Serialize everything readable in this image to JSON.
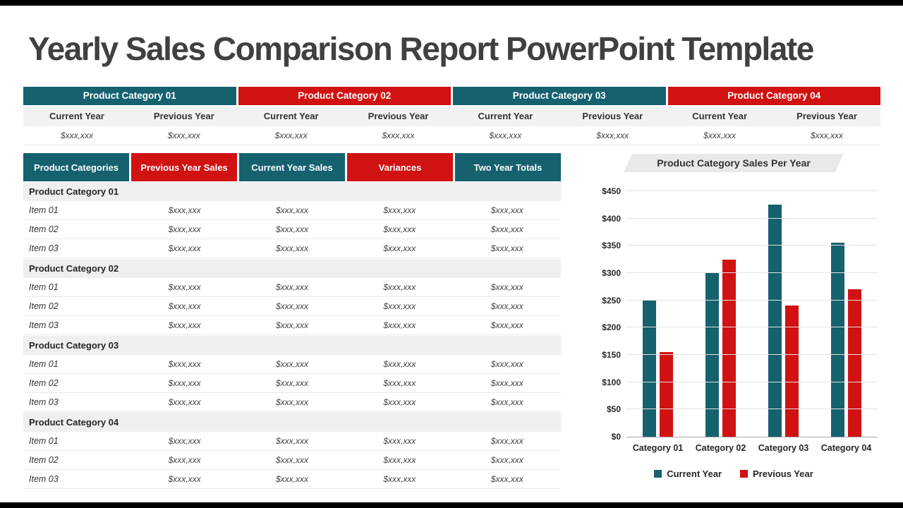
{
  "title": "Yearly Sales Comparison Report PowerPoint Template",
  "colors": {
    "teal": "#15616e",
    "red": "#d01212",
    "title_text": "#404040",
    "section_row_bg": "#efefef",
    "subheader_bg": "#f2f2f2"
  },
  "placeholder_value": "$xxx,xxx",
  "summary_table": {
    "categories": [
      {
        "label": "Product Category 01",
        "color": "teal"
      },
      {
        "label": "Product Category 02",
        "color": "red"
      },
      {
        "label": "Product Category 03",
        "color": "teal"
      },
      {
        "label": "Product Category 04",
        "color": "red"
      }
    ],
    "sub_columns": [
      "Current Year",
      "Previous Year"
    ]
  },
  "detail_table": {
    "columns": [
      {
        "label": "Product Categories",
        "color": "teal"
      },
      {
        "label": "Previous Year Sales",
        "color": "red"
      },
      {
        "label": "Current Year Sales",
        "color": "teal"
      },
      {
        "label": "Variances",
        "color": "red"
      },
      {
        "label": "Two Year Totals",
        "color": "teal"
      }
    ],
    "value_columns": 4,
    "sections": [
      {
        "name": "Product Category 01",
        "items": [
          "Item 01",
          "Item 02",
          "Item 03"
        ]
      },
      {
        "name": "Product Category 02",
        "items": [
          "Item 01",
          "Item 02",
          "Item 03"
        ]
      },
      {
        "name": "Product Category 03",
        "items": [
          "Item 01",
          "Item 02",
          "Item 03"
        ]
      },
      {
        "name": "Product Category 04",
        "items": [
          "Item 01",
          "Item 02",
          "Item 03"
        ]
      }
    ]
  },
  "chart_data": {
    "type": "bar",
    "title": "Product Category Sales Per Year",
    "categories": [
      "Category 01",
      "Category 02",
      "Category 03",
      "Category 04"
    ],
    "series": [
      {
        "name": "Current Year",
        "color": "#15616e",
        "values": [
          250,
          300,
          425,
          355
        ]
      },
      {
        "name": "Previous Year",
        "color": "#d01212",
        "values": [
          155,
          325,
          240,
          270
        ]
      }
    ],
    "ylim": [
      0,
      450
    ],
    "ytick_step": 50,
    "ytick_labels": [
      "$0",
      "$50",
      "$100",
      "$150",
      "$200",
      "$250",
      "$300",
      "$350",
      "$400",
      "$450"
    ],
    "grid": true,
    "legend_position": "bottom"
  }
}
